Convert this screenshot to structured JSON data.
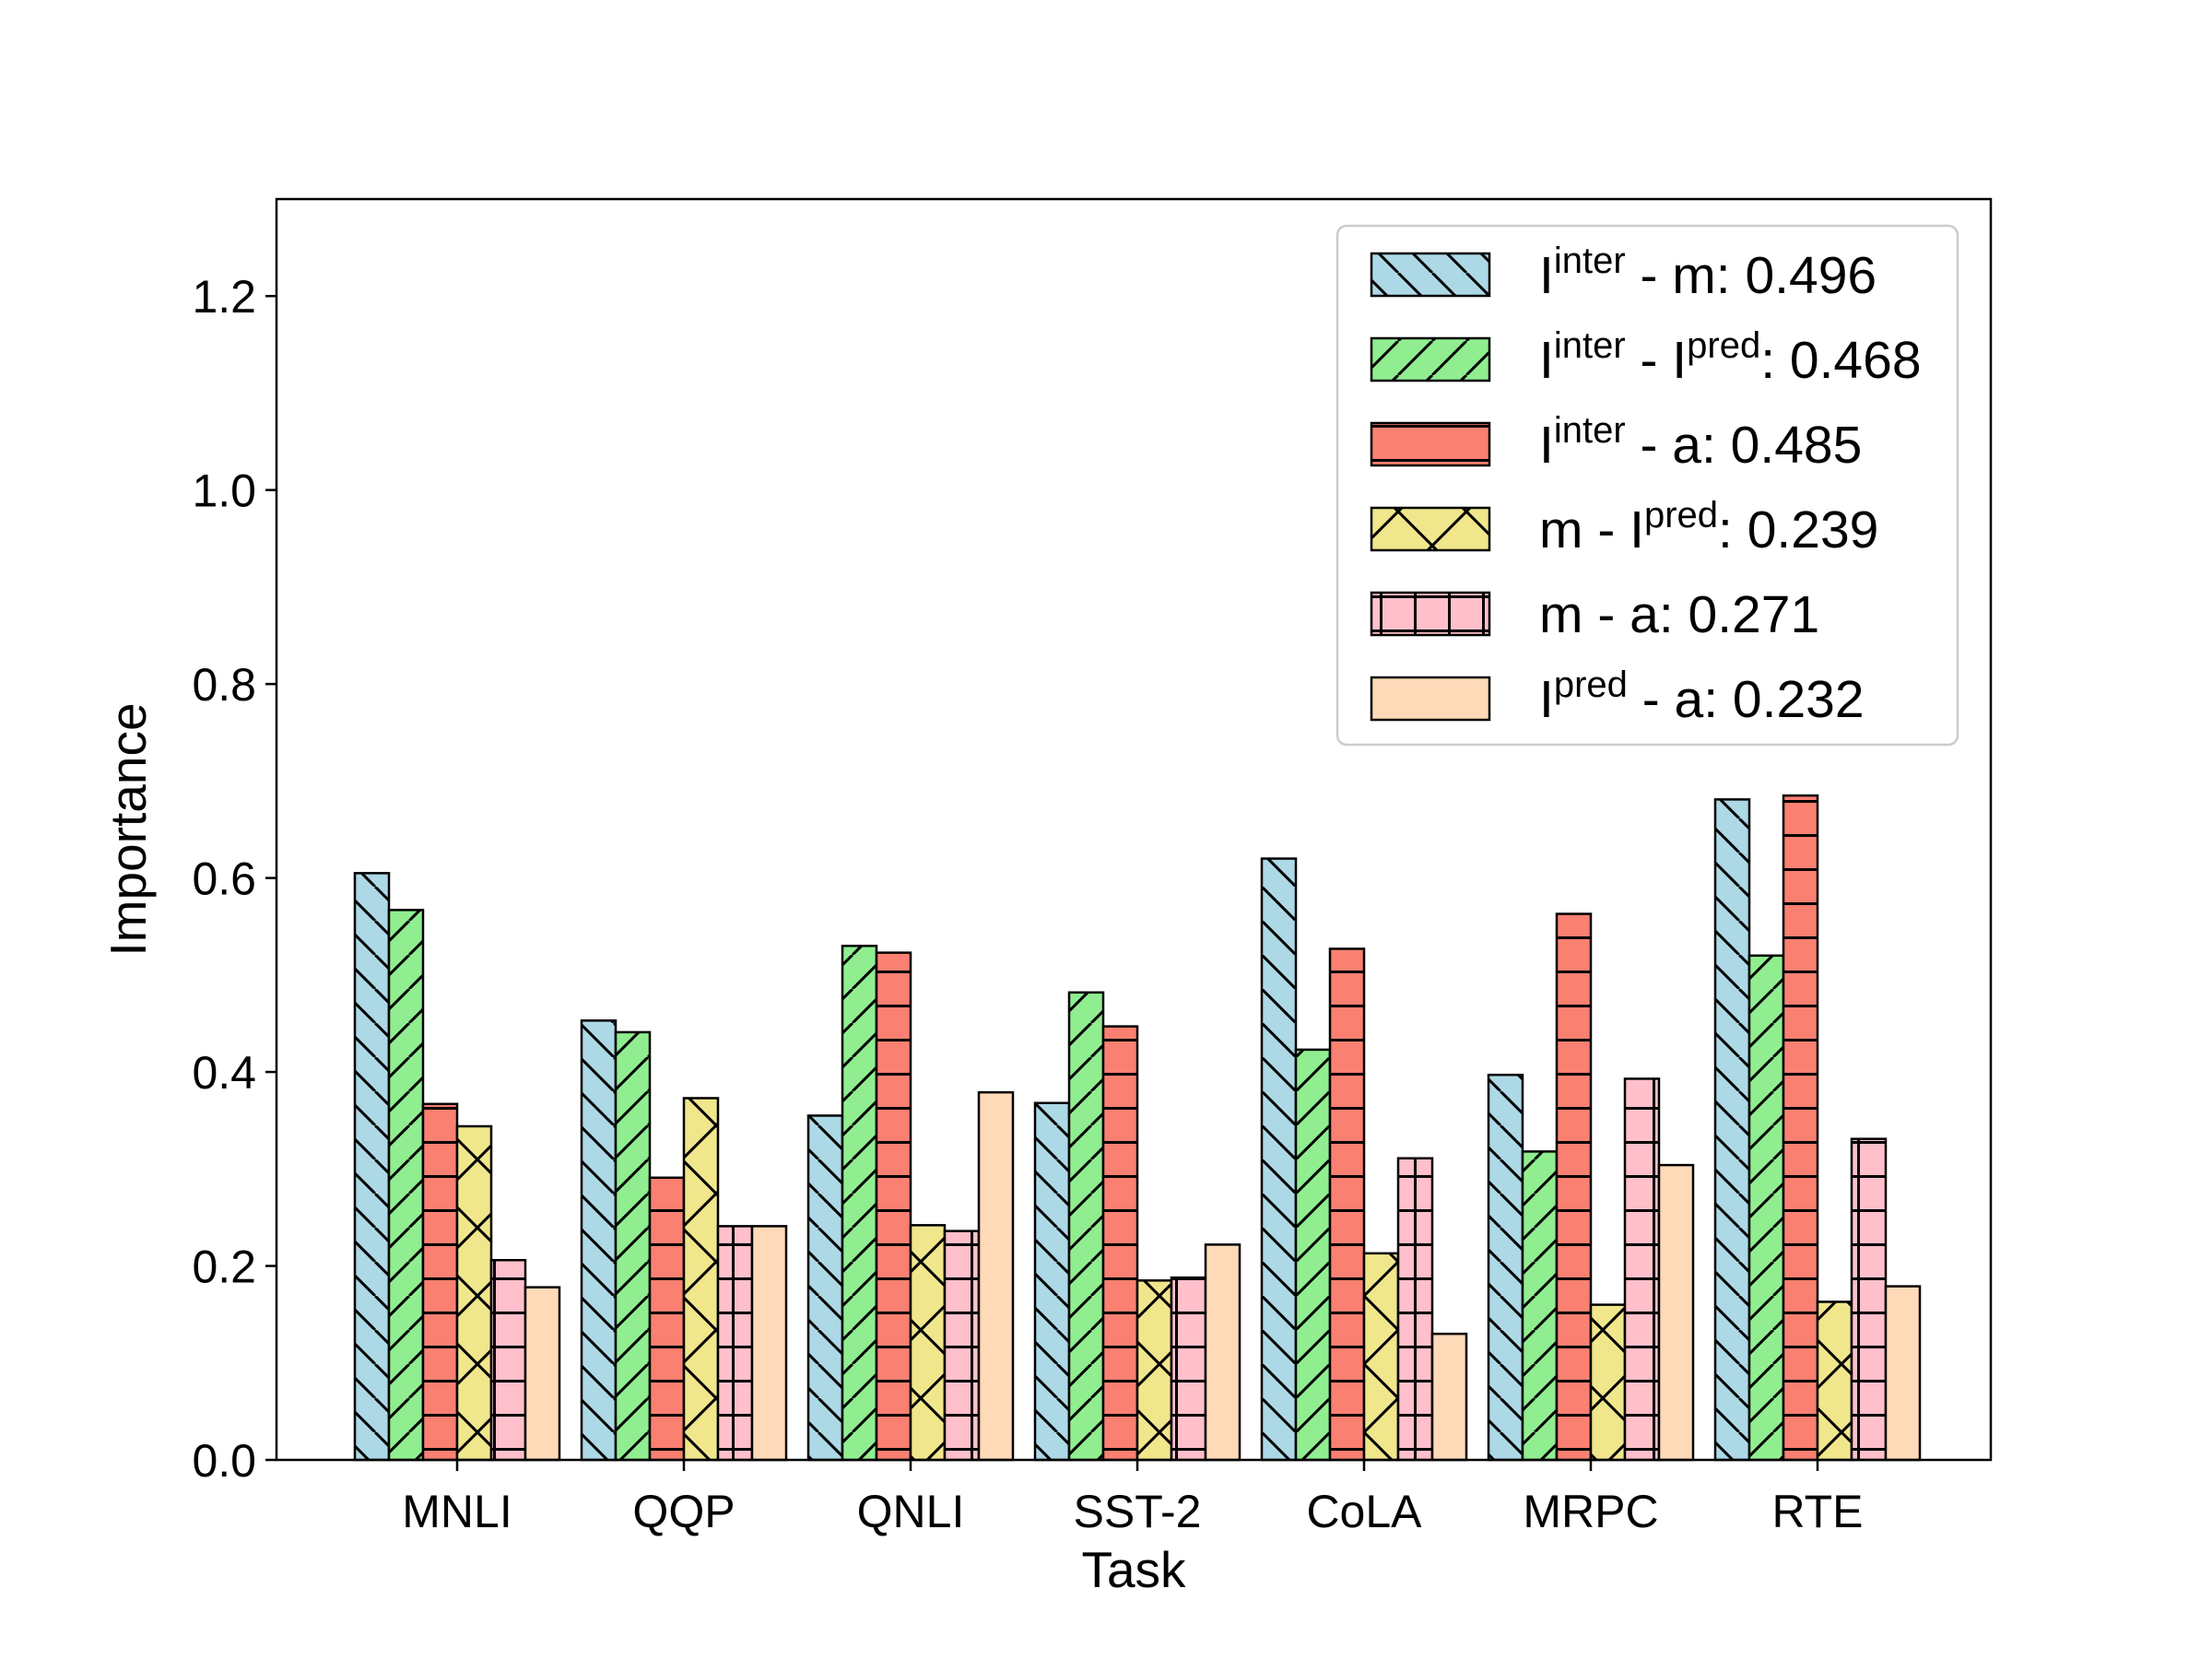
{
  "chart_data": {
    "type": "bar",
    "xlabel": "Task",
    "ylabel": "Importance",
    "ylim": [
      0,
      1.3
    ],
    "yticks": [
      "0.0",
      "0.2",
      "0.4",
      "0.6",
      "0.8",
      "1.0",
      "1.2"
    ],
    "categories": [
      "MNLI",
      "QQP",
      "QNLI",
      "SST-2",
      "CoLA",
      "MRPC",
      "RTE"
    ],
    "grid": false,
    "legend_position": "top-right",
    "series": [
      {
        "color": "#add8e6",
        "hatch": "back-diagonal",
        "values": [
          0.605,
          0.453,
          0.355,
          0.368,
          0.62,
          0.397,
          0.681
        ],
        "legend": {
          "p1": "I",
          "s1": "inter",
          "p2": " - m: 0.496",
          "s2": "",
          "p3": ""
        }
      },
      {
        "color": "#90ee90",
        "hatch": "forward-diagonal",
        "values": [
          0.567,
          0.441,
          0.53,
          0.482,
          0.423,
          0.318,
          0.52
        ],
        "legend": {
          "p1": "I",
          "s1": "inter",
          "p2": " - I",
          "s2": "pred",
          "p3": ": 0.468"
        }
      },
      {
        "color": "#fa8072",
        "hatch": "horizontal",
        "values": [
          0.367,
          0.291,
          0.523,
          0.447,
          0.527,
          0.563,
          0.685
        ],
        "legend": {
          "p1": "I",
          "s1": "inter",
          "p2": " - a: 0.485",
          "s2": "",
          "p3": ""
        }
      },
      {
        "color": "#f0e68c",
        "hatch": "cross-diagonal",
        "values": [
          0.344,
          0.373,
          0.242,
          0.185,
          0.213,
          0.16,
          0.163
        ],
        "legend": {
          "p1": "m - I",
          "s1": "pred",
          "p2": ": 0.239",
          "s2": "",
          "p3": ""
        }
      },
      {
        "color": "#ffc0cb",
        "hatch": "grid",
        "values": [
          0.206,
          0.241,
          0.236,
          0.188,
          0.311,
          0.393,
          0.331
        ],
        "legend": {
          "p1": "m - a: 0.271",
          "s1": "",
          "p2": "",
          "s2": "",
          "p3": ""
        }
      },
      {
        "color": "#ffdab9",
        "hatch": "none",
        "values": [
          0.178,
          0.241,
          0.379,
          0.222,
          0.13,
          0.304,
          0.179
        ],
        "legend": {
          "p1": "I",
          "s1": "pred",
          "p2": " - a: 0.232",
          "s2": "",
          "p3": ""
        }
      }
    ]
  }
}
